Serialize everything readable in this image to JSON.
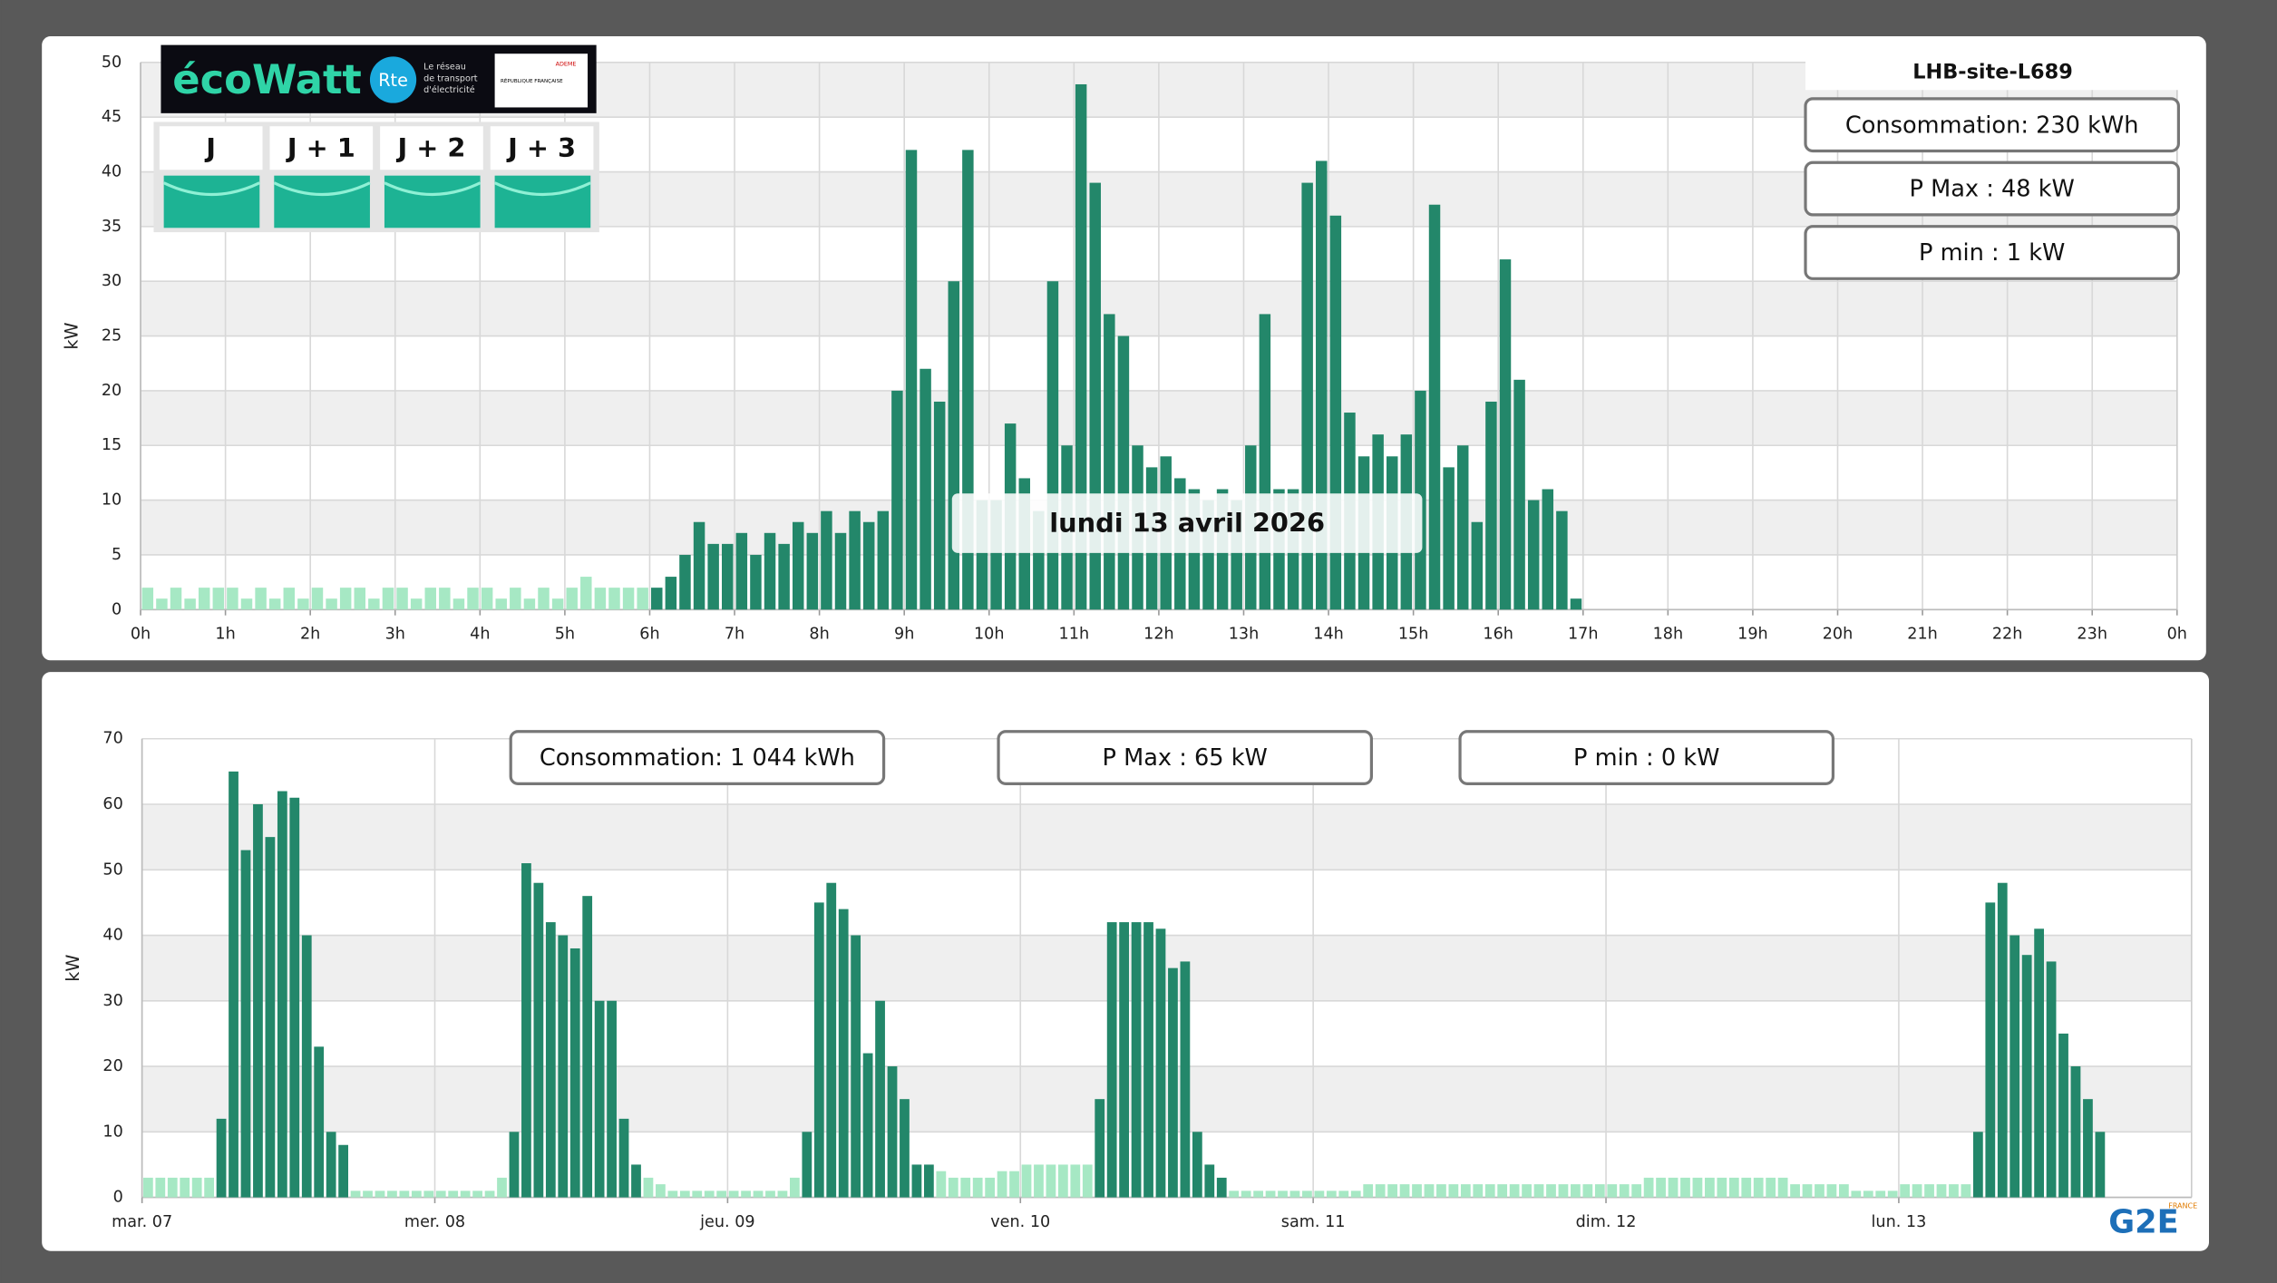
{
  "chart_data": [
    {
      "type": "bar",
      "site": "LHB-site-L689",
      "date_label": "lundi 13 avril 2026",
      "ylabel": "kW",
      "stats": [
        "Consommation: 230 kWh",
        "P Max :  48 kW",
        "P min : 1 kW"
      ],
      "xlim": [
        0,
        24
      ],
      "xticks": [
        {
          "value": 0,
          "label": "0h"
        },
        {
          "value": 1,
          "label": "1h"
        },
        {
          "value": 2,
          "label": "2h"
        },
        {
          "value": 3,
          "label": "3h"
        },
        {
          "value": 4,
          "label": "4h"
        },
        {
          "value": 5,
          "label": "5h"
        },
        {
          "value": 6,
          "label": "6h"
        },
        {
          "value": 7,
          "label": "7h"
        },
        {
          "value": 8,
          "label": "8h"
        },
        {
          "value": 9,
          "label": "9h"
        },
        {
          "value": 10,
          "label": "10h"
        },
        {
          "value": 11,
          "label": "11h"
        },
        {
          "value": 12,
          "label": "12h"
        },
        {
          "value": 13,
          "label": "13h"
        },
        {
          "value": 14,
          "label": "14h"
        },
        {
          "value": 15,
          "label": "15h"
        },
        {
          "value": 16,
          "label": "16h"
        },
        {
          "value": 17,
          "label": "17h"
        },
        {
          "value": 18,
          "label": "18h"
        },
        {
          "value": 19,
          "label": "19h"
        },
        {
          "value": 20,
          "label": "20h"
        },
        {
          "value": 21,
          "label": "21h"
        },
        {
          "value": 22,
          "label": "22h"
        },
        {
          "value": 23,
          "label": "23h"
        },
        {
          "value": 24,
          "label": "0h"
        }
      ],
      "ylim": [
        0,
        50
      ],
      "yticks": [
        0,
        5,
        10,
        15,
        20,
        25,
        30,
        35,
        40,
        45,
        50
      ],
      "grid": true,
      "series": [
        {
          "color": "#a6e8c4",
          "values": [
            2,
            1,
            2,
            1,
            2,
            2,
            2,
            1,
            2,
            1,
            2,
            1,
            2,
            1,
            2,
            2,
            1,
            2,
            2,
            1,
            2,
            2,
            1,
            2,
            2,
            1,
            2,
            1,
            2,
            1,
            2,
            3,
            2,
            2,
            2,
            2,
            null,
            null,
            null,
            null,
            null,
            null,
            null,
            null,
            null,
            null,
            null,
            null,
            null,
            null,
            null,
            null,
            null,
            null,
            null,
            null,
            null,
            null,
            null,
            null,
            null,
            null,
            null,
            null,
            null,
            null,
            null,
            null,
            null,
            null,
            null,
            null,
            null,
            null,
            null,
            null,
            null,
            null,
            null,
            null,
            null,
            null,
            null,
            null,
            null,
            null,
            null,
            null,
            null,
            null,
            null,
            null,
            null,
            null,
            null,
            null,
            null,
            null,
            null,
            null,
            null,
            null,
            null,
            null,
            null,
            null,
            null,
            null,
            null,
            null,
            null,
            null,
            null,
            null,
            null,
            null,
            null,
            null,
            null,
            null,
            null,
            null,
            null,
            null,
            null,
            null,
            null,
            null,
            null,
            null,
            null,
            null,
            null,
            null,
            null,
            null,
            null,
            null,
            null,
            null,
            null,
            null,
            null,
            null
          ]
        },
        {
          "color": "#23876a",
          "values": [
            null,
            null,
            null,
            null,
            null,
            null,
            null,
            null,
            null,
            null,
            null,
            null,
            null,
            null,
            null,
            null,
            null,
            null,
            null,
            null,
            null,
            null,
            null,
            null,
            null,
            null,
            null,
            null,
            null,
            null,
            null,
            null,
            null,
            null,
            null,
            null,
            2,
            3,
            5,
            8,
            6,
            6,
            7,
            5,
            7,
            6,
            8,
            7,
            9,
            7,
            9,
            8,
            9,
            20,
            42,
            22,
            19,
            30,
            42,
            10,
            10,
            17,
            12,
            9,
            30,
            15,
            48,
            39,
            27,
            25,
            15,
            13,
            14,
            12,
            11,
            10,
            11,
            10,
            15,
            27,
            11,
            11,
            39,
            41,
            36,
            18,
            14,
            16,
            14,
            16,
            20,
            37,
            13,
            15,
            8,
            19,
            32,
            21,
            10,
            11,
            9,
            1,
            null,
            null,
            null,
            null,
            null,
            null,
            null,
            null,
            null,
            null,
            null,
            null,
            null,
            null,
            null,
            null,
            null,
            null,
            null,
            null,
            null,
            null,
            null,
            null,
            null,
            null,
            null,
            null,
            null,
            null,
            null,
            null,
            null,
            null,
            null,
            null,
            null,
            null,
            null,
            null,
            null,
            null
          ]
        }
      ]
    },
    {
      "type": "bar",
      "ylabel": "kW",
      "stats": [
        "Consommation: 1 044 kWh",
        "P Max :  65 kW",
        "P min : 0 kW"
      ],
      "xlim": [
        0,
        7
      ],
      "xticks": [
        {
          "value": 0,
          "label": "mar. 07"
        },
        {
          "value": 1,
          "label": "mer. 08"
        },
        {
          "value": 2,
          "label": "jeu. 09"
        },
        {
          "value": 3,
          "label": "ven. 10"
        },
        {
          "value": 4,
          "label": "sam. 11"
        },
        {
          "value": 5,
          "label": "dim. 12"
        },
        {
          "value": 6,
          "label": "lun. 13"
        }
      ],
      "ylim": [
        0,
        70
      ],
      "yticks": [
        0,
        10,
        20,
        30,
        40,
        50,
        60,
        70
      ],
      "grid": true,
      "series": [
        {
          "color": "#a6e8c4",
          "values": [
            3,
            3,
            3,
            3,
            3,
            3,
            null,
            null,
            null,
            null,
            null,
            null,
            null,
            null,
            null,
            null,
            null,
            1,
            1,
            1,
            1,
            1,
            1,
            1,
            1,
            1,
            1,
            1,
            1,
            3,
            null,
            null,
            null,
            null,
            null,
            null,
            null,
            null,
            null,
            null,
            null,
            3,
            2,
            1,
            1,
            1,
            1,
            1,
            1,
            1,
            1,
            1,
            1,
            3,
            null,
            null,
            null,
            null,
            null,
            null,
            null,
            null,
            null,
            null,
            null,
            4,
            3,
            3,
            3,
            3,
            4,
            4,
            5,
            5,
            5,
            5,
            5,
            5,
            null,
            null,
            null,
            null,
            null,
            null,
            null,
            null,
            null,
            null,
            null,
            1,
            1,
            1,
            1,
            1,
            1,
            1,
            1,
            1,
            1,
            1,
            2,
            2,
            2,
            2,
            2,
            2,
            2,
            2,
            2,
            2,
            2,
            2,
            2,
            2,
            2,
            2,
            2,
            2,
            2,
            2,
            2,
            2,
            2,
            3,
            3,
            3,
            3,
            3,
            3,
            3,
            3,
            3,
            3,
            3,
            3,
            2,
            2,
            2,
            2,
            2,
            1,
            1,
            1,
            1,
            2,
            2,
            2,
            2,
            2,
            2,
            null,
            null,
            null,
            null,
            null,
            null,
            null,
            null,
            null,
            null,
            null,
            null,
            null,
            null,
            null,
            null,
            null,
            null
          ]
        },
        {
          "color": "#23876a",
          "values": [
            null,
            null,
            null,
            null,
            null,
            null,
            12,
            65,
            53,
            60,
            55,
            62,
            61,
            40,
            23,
            10,
            8,
            null,
            null,
            null,
            null,
            null,
            null,
            null,
            null,
            null,
            null,
            null,
            null,
            null,
            10,
            51,
            48,
            42,
            40,
            38,
            46,
            30,
            30,
            12,
            5,
            null,
            null,
            null,
            null,
            null,
            null,
            null,
            null,
            null,
            null,
            null,
            null,
            null,
            10,
            45,
            48,
            44,
            40,
            22,
            30,
            20,
            15,
            5,
            5,
            null,
            null,
            null,
            null,
            null,
            null,
            null,
            null,
            null,
            null,
            null,
            null,
            null,
            15,
            42,
            42,
            42,
            42,
            41,
            35,
            36,
            10,
            5,
            3,
            null,
            null,
            null,
            null,
            null,
            null,
            null,
            null,
            null,
            null,
            null,
            null,
            null,
            null,
            null,
            null,
            null,
            null,
            null,
            null,
            null,
            null,
            null,
            null,
            null,
            null,
            null,
            null,
            null,
            null,
            null,
            null,
            null,
            null,
            null,
            null,
            null,
            null,
            null,
            null,
            null,
            null,
            null,
            null,
            null,
            null,
            null,
            null,
            null,
            null,
            null,
            null,
            null,
            null,
            null,
            null,
            null,
            null,
            null,
            null,
            null,
            10,
            45,
            48,
            40,
            37,
            41,
            36,
            25,
            20,
            15,
            10,
            null,
            null,
            null,
            null,
            null,
            null,
            null
          ]
        }
      ]
    }
  ],
  "ecowatt": {
    "logo": "écoWatt",
    "rte": "Rte",
    "rte_tagline": [
      "Le réseau",
      "de transport",
      "d'électricité"
    ],
    "republique": "RÉPUBLIQUE FRANÇAISE",
    "ademe": "ADEME",
    "days": [
      "J",
      "J + 1",
      "J + 2",
      "J + 3"
    ]
  },
  "footer_logo": {
    "brand": "G2E",
    "country": "FRANCE"
  }
}
